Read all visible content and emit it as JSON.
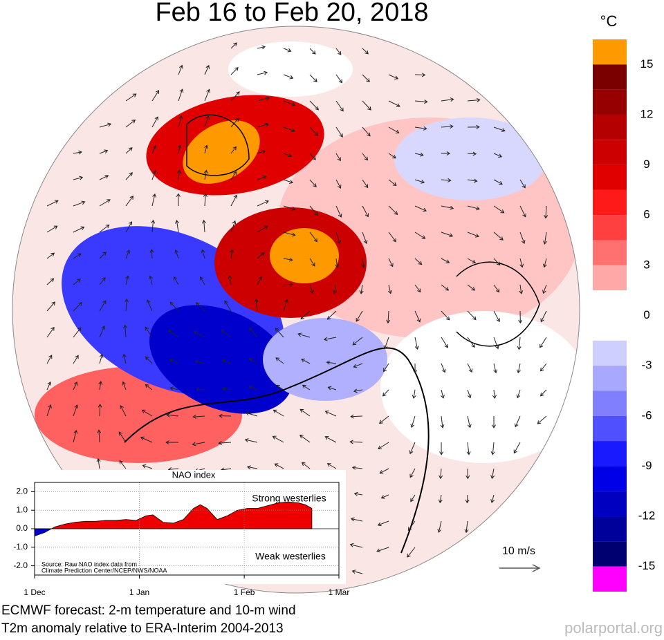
{
  "title": "Feb 16 to Feb 20, 2018",
  "colorbar": {
    "unit": "°C",
    "ticks": [
      15,
      12,
      9,
      6,
      3,
      0,
      -3,
      -6,
      -9,
      -12,
      -15
    ],
    "colors": [
      "#ff9900",
      "#7a0000",
      "#960000",
      "#b40000",
      "#cc0000",
      "#e00000",
      "#ff1a1a",
      "#ff4040",
      "#ff7070",
      "#ffa8a8",
      "#ffffff",
      "#ffffff",
      "#cfcfff",
      "#a8a8ff",
      "#8080ff",
      "#5050ff",
      "#1a1aff",
      "#0000e6",
      "#0000c0",
      "#00009a",
      "#000070",
      "#ff00ff"
    ]
  },
  "wind_scale": "10 m/s",
  "chart_data": {
    "type": "area",
    "title": "NAO index",
    "x": [
      0,
      3,
      6,
      9,
      12,
      15,
      18,
      21,
      24,
      27,
      30,
      33,
      35,
      38,
      41,
      44,
      47,
      49,
      51,
      54,
      57,
      60,
      63,
      66,
      69,
      72,
      75,
      78,
      80,
      82
    ],
    "values": [
      -0.4,
      -0.2,
      0.1,
      0.25,
      0.35,
      0.4,
      0.4,
      0.45,
      0.45,
      0.5,
      0.45,
      0.7,
      0.75,
      0.35,
      0.3,
      0.5,
      1.1,
      1.3,
      1.1,
      0.5,
      0.7,
      1.0,
      1.1,
      1.1,
      1.25,
      1.4,
      1.45,
      1.4,
      1.3,
      1.1
    ],
    "positive_color": "#ee0000",
    "negative_color": "#0000cc",
    "xlim": [
      0,
      90
    ],
    "xticks": [
      {
        "value": 0,
        "label": "1 Dec"
      },
      {
        "value": 31,
        "label": "1 Jan"
      },
      {
        "value": 62,
        "label": "1 Feb"
      },
      {
        "value": 90,
        "label": "1 Mar"
      }
    ],
    "ylim": [
      -2.5,
      2.5
    ],
    "yticks": [
      {
        "value": 2,
        "label": "2.0"
      },
      {
        "value": 1,
        "label": "1.0"
      },
      {
        "value": 0,
        "label": "0.0"
      },
      {
        "value": -1,
        "label": "-1.0"
      },
      {
        "value": -2,
        "label": "-2.0"
      }
    ],
    "grid": true,
    "annotations": [
      "Strong westerlies",
      "Weak westerlies"
    ],
    "source": [
      "Source: Raw NAO index data from",
      "Climate Prediction Center/NCEP/NWS/NOAA"
    ]
  },
  "caption": [
    "ECMWF forecast: 2-m temperature and 10-m wind",
    "T2m anomaly relative to ERA-Interim 2004-2013"
  ],
  "credit": "polarportal.org"
}
